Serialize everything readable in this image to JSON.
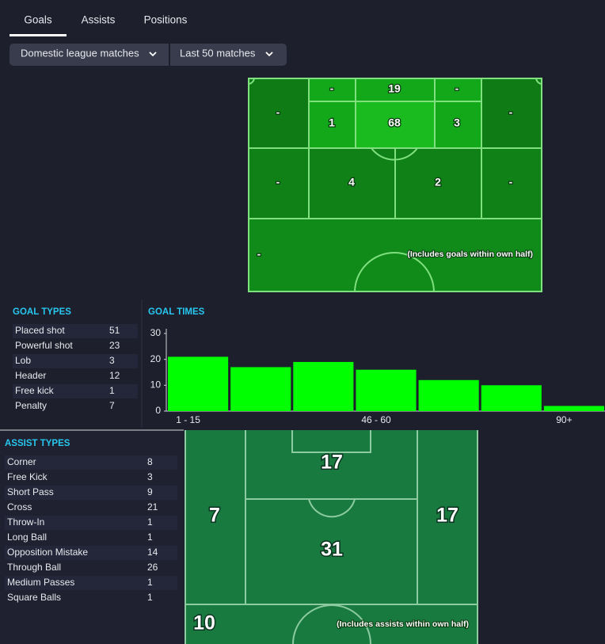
{
  "tabs": [
    "Goals",
    "Assists",
    "Positions"
  ],
  "filters": [
    "Domestic league matches",
    "Last 50 matches"
  ],
  "goal_map": {
    "zones": [
      "-",
      "-",
      19,
      "-",
      "-",
      1,
      68,
      3,
      "-",
      4,
      2,
      "-",
      "-"
    ],
    "note": "(Includes goals within own half)"
  },
  "goal_types": {
    "title": "GOAL TYPES",
    "rows": [
      [
        "Placed shot",
        51
      ],
      [
        "Powerful shot",
        23
      ],
      [
        "Lob",
        3
      ],
      [
        "Header",
        12
      ],
      [
        "Free kick",
        1
      ],
      [
        "Penalty",
        7
      ]
    ]
  },
  "chart_data": {
    "type": "bar",
    "title": "GOAL TIMES",
    "categories": [
      "1 - 15",
      null,
      null,
      "46 - 60",
      null,
      null,
      "90+"
    ],
    "values": [
      21,
      17,
      19,
      16,
      12,
      10,
      2
    ],
    "color": "#00ff00",
    "ylim": [
      0,
      30
    ],
    "yticks": [
      0,
      10,
      20,
      30
    ]
  },
  "assist_types": {
    "title": "ASSIST TYPES",
    "rows": [
      [
        "Corner",
        8
      ],
      [
        "Free Kick",
        3
      ],
      [
        "Short Pass",
        9
      ],
      [
        "Cross",
        21
      ],
      [
        "Throw-In",
        1
      ],
      [
        "Long Ball",
        1
      ],
      [
        "Opposition Mistake",
        14
      ],
      [
        "Through Ball",
        26
      ],
      [
        "Medium Passes",
        1
      ],
      [
        "Square Balls",
        1
      ]
    ]
  },
  "assist_map": {
    "zones": [
      7,
      17,
      17,
      31,
      10
    ],
    "note": "(Includes assists within own half)"
  }
}
